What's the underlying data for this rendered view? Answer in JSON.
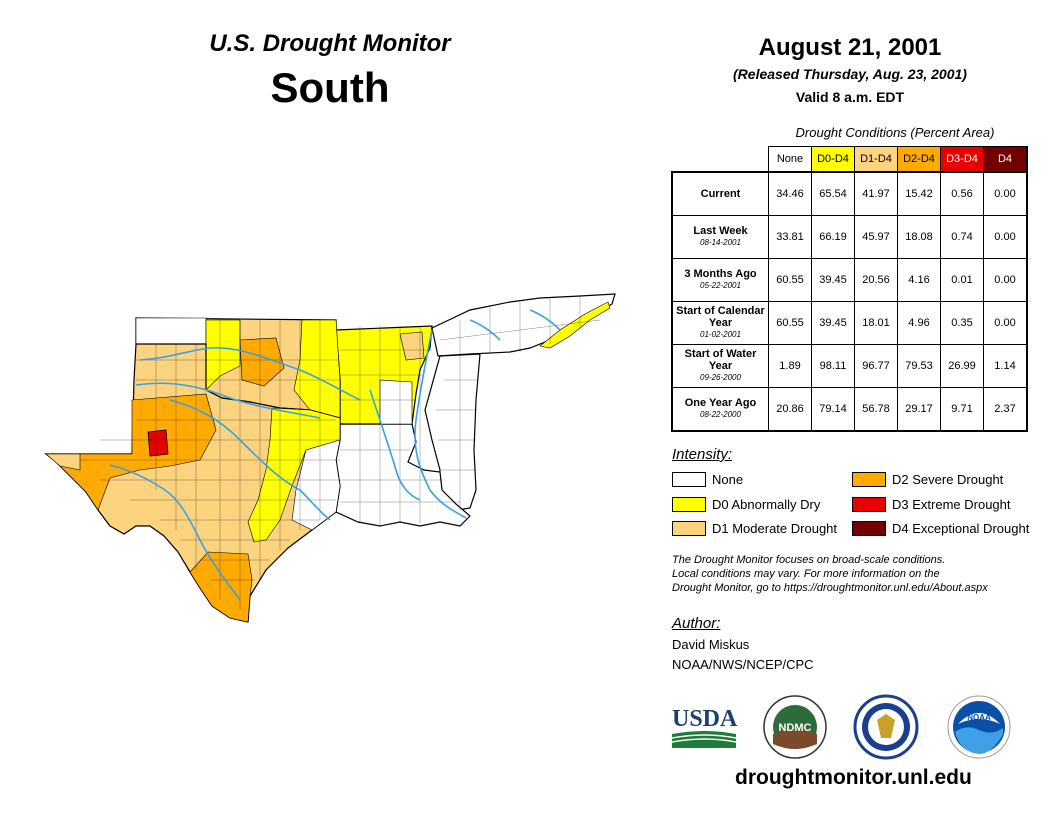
{
  "header": {
    "monitor": "U.S. Drought Monitor",
    "region": "South",
    "date": "August 21, 2001",
    "released": "(Released Thursday, Aug. 23, 2001)",
    "valid": "Valid 8 a.m. EDT"
  },
  "table": {
    "caption": "Drought Conditions (Percent Area)",
    "columns": [
      "None",
      "D0-D4",
      "D1-D4",
      "D2-D4",
      "D3-D4",
      "D4"
    ],
    "rows": [
      {
        "label": "Current",
        "date": "",
        "values": [
          "34.46",
          "65.54",
          "41.97",
          "15.42",
          "0.56",
          "0.00"
        ]
      },
      {
        "label": "Last Week",
        "date": "08-14-2001",
        "values": [
          "33.81",
          "66.19",
          "45.97",
          "18.08",
          "0.74",
          "0.00"
        ]
      },
      {
        "label": "3 Months Ago",
        "date": "05-22-2001",
        "values": [
          "60.55",
          "39.45",
          "20.56",
          "4.16",
          "0.01",
          "0.00"
        ]
      },
      {
        "label": "Start of Calendar Year",
        "date": "01-02-2001",
        "values": [
          "60.55",
          "39.45",
          "18.01",
          "4.96",
          "0.35",
          "0.00"
        ]
      },
      {
        "label": "Start of Water Year",
        "date": "09-26-2000",
        "values": [
          "1.89",
          "98.11",
          "96.77",
          "79.53",
          "26.99",
          "1.14"
        ]
      },
      {
        "label": "One Year Ago",
        "date": "08-22-2000",
        "values": [
          "20.86",
          "79.14",
          "56.78",
          "29.17",
          "9.71",
          "2.37"
        ]
      }
    ]
  },
  "legend": {
    "title": "Intensity:",
    "items": [
      {
        "label": "None",
        "color": "#ffffff"
      },
      {
        "label": "D0 Abnormally Dry",
        "color": "#ffff00"
      },
      {
        "label": "D1 Moderate Drought",
        "color": "#fcd37f"
      },
      {
        "label": "D2 Severe Drought",
        "color": "#ffaa00"
      },
      {
        "label": "D3 Extreme Drought",
        "color": "#e60000"
      },
      {
        "label": "D4 Exceptional Drought",
        "color": "#730000"
      }
    ]
  },
  "note": {
    "line1": "The Drought Monitor focuses on broad-scale conditions.",
    "line2": "Local conditions may vary. For more information on the",
    "line3": "Drought Monitor, go to https://droughtmonitor.unl.edu/About.aspx"
  },
  "author": {
    "title": "Author:",
    "name": "David Miskus",
    "org": "NOAA/NWS/NCEP/CPC"
  },
  "logos": {
    "usda": "USDA",
    "ndmc": "NDMC",
    "noaa": "NOAA"
  },
  "site_url": "droughtmonitor.unl.edu",
  "colors": {
    "none": "#ffffff",
    "d0": "#ffff00",
    "d1": "#fcd37f",
    "d2": "#ffaa00",
    "d3": "#e60000",
    "d4": "#730000",
    "water": "#3aa0e6"
  }
}
